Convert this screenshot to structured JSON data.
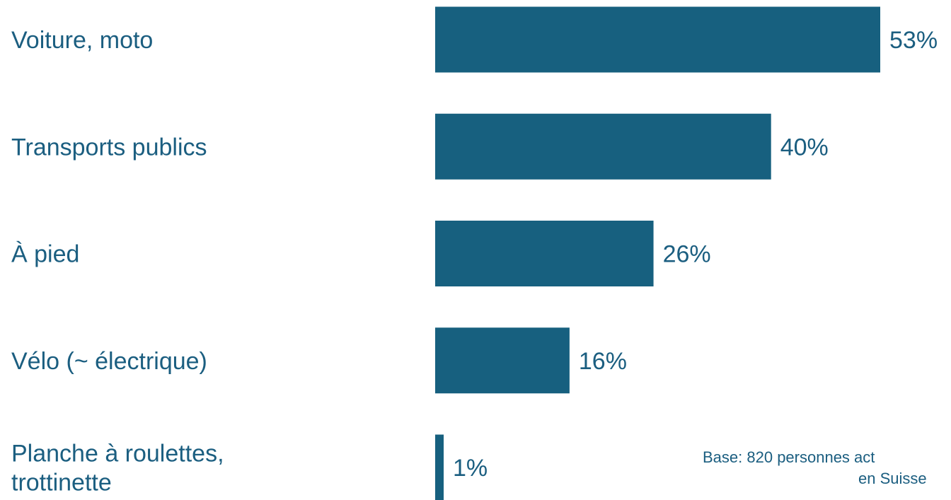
{
  "chart_data": {
    "type": "bar",
    "orientation": "horizontal",
    "categories": [
      "Voiture, moto",
      "Transports publics",
      "À pied",
      "Vélo (~ électrique)",
      "Planche à roulettes, trottinette"
    ],
    "category_lines": [
      [
        "Voiture, moto"
      ],
      [
        "Transports publics"
      ],
      [
        "À pied"
      ],
      [
        "Vélo (~ électrique)"
      ],
      [
        "Planche à roulettes,",
        "trottinette"
      ]
    ],
    "values": [
      53,
      40,
      26,
      16,
      1
    ],
    "value_labels": [
      "53%",
      "40%",
      "26%",
      "16%",
      "1%"
    ],
    "unit": "%",
    "xlim": [
      0,
      53
    ],
    "grid": false,
    "legend": "none",
    "bar_color": "#17607f",
    "text_color": "#1b5e80",
    "title": "",
    "xlabel": "",
    "ylabel": ""
  },
  "note": {
    "line1": "Base: 820 personnes act",
    "line2": "en Suisse"
  }
}
